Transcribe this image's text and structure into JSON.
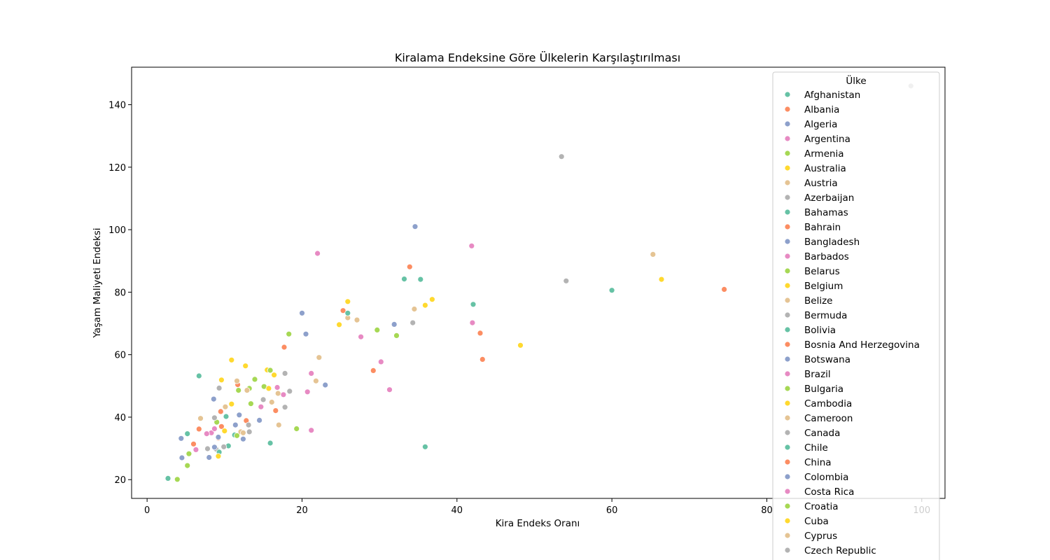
{
  "chart_data": {
    "type": "scatter",
    "title": "Kiralama Endeksine Göre Ülkelerin Karşılaştırılması",
    "xlabel": "Kira Endeks Oranı",
    "ylabel": "Yaşam Maliyeti Endeksi",
    "xlim": [
      -2,
      103
    ],
    "ylim": [
      14,
      152
    ],
    "xticks": [
      0,
      20,
      40,
      60,
      80,
      100
    ],
    "yticks": [
      20,
      40,
      60,
      80,
      100,
      120,
      140
    ],
    "grid": false,
    "legend_title": "Ülke",
    "legend_position": "top-right",
    "palette": [
      "#66c2a5",
      "#fc8d62",
      "#8da0cb",
      "#e78ac3",
      "#a6d854",
      "#ffd92f",
      "#e5c494",
      "#b3b3b3"
    ],
    "series": [
      {
        "name": "Afghanistan",
        "points": [
          [
            2.7,
            20.4
          ]
        ]
      },
      {
        "name": "Albania",
        "points": [
          [
            6.7,
            36.2
          ],
          [
            9.5,
            41.8
          ]
        ]
      },
      {
        "name": "Algeria",
        "points": [
          [
            4.5,
            27.0
          ]
        ]
      },
      {
        "name": "Argentina",
        "points": [
          [
            6.3,
            29.6
          ],
          [
            8.3,
            35.0
          ]
        ]
      },
      {
        "name": "Armenia",
        "points": [
          [
            3.9,
            20.1
          ],
          [
            5.2,
            24.5
          ]
        ]
      },
      {
        "name": "Australia",
        "points": [
          [
            36.8,
            77.7
          ],
          [
            35.9,
            75.8
          ]
        ]
      },
      {
        "name": "Austria",
        "points": [
          [
            25.9,
            71.8
          ],
          [
            34.5,
            74.6
          ]
        ]
      },
      {
        "name": "Azerbaijan",
        "points": [
          [
            8.9,
            29.8
          ]
        ]
      },
      {
        "name": "Bahamas",
        "points": [
          [
            35.3,
            84.1
          ],
          [
            33.2,
            84.2
          ]
        ]
      },
      {
        "name": "Bahrain",
        "points": [
          [
            25.3,
            74.1
          ]
        ]
      },
      {
        "name": "Bangladesh",
        "points": [
          [
            4.4,
            33.2
          ]
        ]
      },
      {
        "name": "Barbados",
        "points": [
          [
            42.0,
            70.2
          ],
          [
            41.9,
            94.8
          ]
        ]
      },
      {
        "name": "Belarus",
        "points": [
          [
            5.4,
            28.3
          ]
        ]
      },
      {
        "name": "Belgium",
        "points": [
          [
            25.9,
            77.0
          ]
        ]
      },
      {
        "name": "Belize",
        "points": [
          [
            6.9,
            39.6
          ]
        ]
      },
      {
        "name": "Bermuda",
        "points": [
          [
            98.6,
            146.0
          ]
        ]
      },
      {
        "name": "Bolivia",
        "points": [
          [
            5.2,
            34.7
          ]
        ]
      },
      {
        "name": "Bosnia And Herzegovina",
        "points": [
          [
            6.0,
            31.4
          ]
        ]
      },
      {
        "name": "Botswana",
        "points": [
          [
            8.0,
            27.1
          ]
        ]
      },
      {
        "name": "Brazil",
        "points": [
          [
            7.7,
            34.7
          ]
        ]
      },
      {
        "name": "Bulgaria",
        "points": [
          [
            9.0,
            38.4
          ]
        ]
      },
      {
        "name": "Cambodia",
        "points": [
          [
            10.9,
            44.2
          ]
        ]
      },
      {
        "name": "Cameroon",
        "points": [
          [
            12.1,
            35.3
          ]
        ]
      },
      {
        "name": "Canada",
        "points": [
          [
            34.3,
            70.2
          ],
          [
            54.1,
            83.6
          ],
          [
            53.5,
            123.4
          ]
        ]
      },
      {
        "name": "Chile",
        "points": [
          [
            10.2,
            40.2
          ]
        ]
      },
      {
        "name": "China",
        "points": [
          [
            12.8,
            38.9
          ]
        ]
      },
      {
        "name": "Colombia",
        "points": [
          [
            8.7,
            30.4
          ]
        ]
      },
      {
        "name": "Costa Rica",
        "points": [
          [
            16.8,
            49.5
          ]
        ]
      },
      {
        "name": "Croatia",
        "points": [
          [
            15.1,
            49.8
          ]
        ]
      },
      {
        "name": "Cuba",
        "points": [
          [
            15.5,
            55.1
          ]
        ]
      },
      {
        "name": "Cyprus",
        "points": [
          [
            22.2,
            59.1
          ]
        ]
      },
      {
        "name": "Czech Republic",
        "points": [
          [
            17.8,
            54.0
          ]
        ]
      },
      {
        "series_index": 32,
        "points": [
          [
            6.7,
            53.2
          ],
          [
            42.1,
            76.1
          ],
          [
            60.0,
            80.6
          ],
          [
            25.9,
            73.3
          ],
          [
            15.9,
            31.7
          ],
          [
            10.5,
            30.8
          ],
          [
            35.9,
            30.5
          ],
          [
            11.3,
            34.3
          ],
          [
            9.3,
            28.8
          ]
        ]
      },
      {
        "series_index": 33,
        "points": [
          [
            33.9,
            88.1
          ],
          [
            74.5,
            80.9
          ],
          [
            17.7,
            62.4
          ],
          [
            43.0,
            66.9
          ],
          [
            43.3,
            58.5
          ],
          [
            29.2,
            54.9
          ],
          [
            11.7,
            50.4
          ],
          [
            16.6,
            42.1
          ],
          [
            9.2,
            33.3
          ],
          [
            9.6,
            37.0
          ]
        ]
      },
      {
        "series_index": 34,
        "points": [
          [
            34.6,
            101.0
          ],
          [
            20.0,
            73.3
          ],
          [
            20.5,
            66.6
          ],
          [
            31.9,
            69.7
          ],
          [
            23.0,
            50.3
          ],
          [
            14.5,
            39.0
          ],
          [
            11.9,
            40.7
          ],
          [
            8.6,
            45.8
          ],
          [
            12.4,
            33.0
          ],
          [
            11.4,
            37.5
          ],
          [
            9.2,
            33.6
          ]
        ]
      },
      {
        "series_index": 35,
        "points": [
          [
            22.0,
            92.4
          ],
          [
            27.6,
            65.7
          ],
          [
            30.2,
            57.7
          ],
          [
            31.3,
            48.8
          ],
          [
            21.2,
            54.0
          ],
          [
            20.7,
            48.1
          ],
          [
            17.6,
            47.2
          ],
          [
            14.7,
            43.3
          ],
          [
            21.2,
            35.8
          ],
          [
            8.7,
            36.3
          ]
        ]
      },
      {
        "series_index": 36,
        "points": [
          [
            29.7,
            67.9
          ],
          [
            32.2,
            66.1
          ],
          [
            18.3,
            66.6
          ],
          [
            15.9,
            55.0
          ],
          [
            13.9,
            52.1
          ],
          [
            11.8,
            48.6
          ],
          [
            13.2,
            49.2
          ],
          [
            13.4,
            44.3
          ],
          [
            19.3,
            36.3
          ],
          [
            11.6,
            34.1
          ]
        ]
      },
      {
        "series_index": 37,
        "points": [
          [
            66.4,
            84.1
          ],
          [
            48.2,
            63.0
          ],
          [
            24.8,
            69.6
          ],
          [
            10.9,
            58.3
          ],
          [
            12.7,
            56.4
          ],
          [
            16.4,
            53.5
          ],
          [
            15.7,
            49.2
          ],
          [
            9.6,
            51.9
          ],
          [
            9.2,
            27.5
          ],
          [
            10.0,
            35.6
          ]
        ]
      },
      {
        "series_index": 38,
        "points": [
          [
            65.3,
            92.1
          ],
          [
            27.1,
            71.1
          ],
          [
            21.8,
            51.6
          ],
          [
            16.9,
            47.6
          ],
          [
            16.1,
            44.8
          ],
          [
            17.0,
            37.5
          ],
          [
            12.9,
            48.6
          ],
          [
            11.6,
            51.6
          ],
          [
            10.1,
            43.3
          ],
          [
            12.4,
            35.0
          ]
        ]
      },
      {
        "series_index": 39,
        "points": [
          [
            18.4,
            48.3
          ],
          [
            15.0,
            45.6
          ],
          [
            17.8,
            43.2
          ],
          [
            13.1,
            37.5
          ],
          [
            13.2,
            35.3
          ],
          [
            8.7,
            39.8
          ],
          [
            9.3,
            49.3
          ],
          [
            7.8,
            29.9
          ],
          [
            9.9,
            30.5
          ]
        ]
      }
    ]
  },
  "legend": {
    "title": "Ülke",
    "entries": [
      "Afghanistan",
      "Albania",
      "Algeria",
      "Argentina",
      "Armenia",
      "Australia",
      "Austria",
      "Azerbaijan",
      "Bahamas",
      "Bahrain",
      "Bangladesh",
      "Barbados",
      "Belarus",
      "Belgium",
      "Belize",
      "Bermuda",
      "Bolivia",
      "Bosnia And Herzegovina",
      "Botswana",
      "Brazil",
      "Bulgaria",
      "Cambodia",
      "Cameroon",
      "Canada",
      "Chile",
      "China",
      "Colombia",
      "Costa Rica",
      "Croatia",
      "Cuba",
      "Cyprus",
      "Czech Republic"
    ]
  }
}
